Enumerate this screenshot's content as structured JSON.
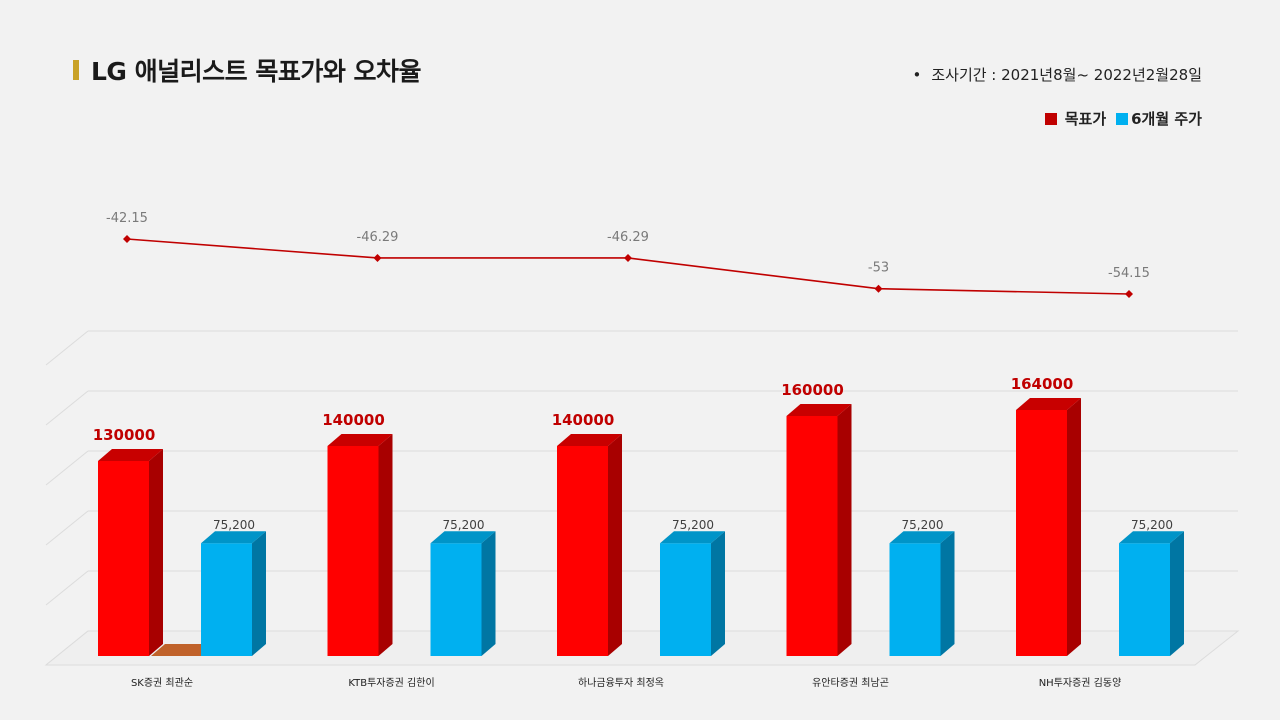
{
  "header": {
    "title": "LG 애널리스트 목표가와 오차율",
    "period_bullet": "•",
    "period": "조사기간 : 2021년8월~ 2022년2월28일"
  },
  "legend": {
    "target_label": "목표가",
    "price_label": "6개월 주가"
  },
  "colors": {
    "target": "#ff0000",
    "price": "#00b0f0",
    "error_line": "#c00000",
    "title_accent": "#c9a227"
  },
  "chart_data": {
    "type": "bar",
    "categories": [
      "SK증권 최관순",
      "KTB투자증권 김한이",
      "하나금융투자 최정옥",
      "유안타증권 최남곤",
      "NH투자증권 김동양"
    ],
    "series": [
      {
        "name": "목표가",
        "values": [
          130000,
          140000,
          140000,
          160000,
          164000
        ],
        "labels": [
          "130000",
          "140000",
          "140000",
          "160000",
          "164000"
        ]
      },
      {
        "name": "6개월 주가",
        "values": [
          75200,
          75200,
          75200,
          75200,
          75200
        ],
        "labels": [
          "75,200",
          "75,200",
          "75,200",
          "75,200",
          "75,200"
        ]
      }
    ],
    "error_line": {
      "type": "line",
      "values": [
        -42.15,
        -46.29,
        -46.29,
        -53,
        -54.15
      ],
      "labels": [
        "-42.15",
        "-46.29",
        "-46.29",
        "-53",
        "-54.15"
      ]
    },
    "ylim": [
      0,
      200000
    ],
    "grid": true,
    "legend_position": "top-right"
  }
}
